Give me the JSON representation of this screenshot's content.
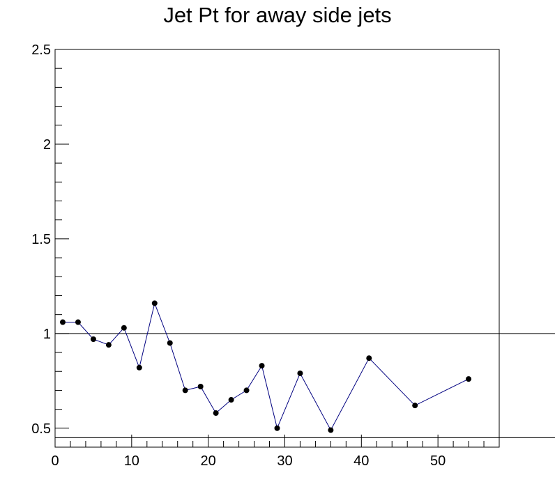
{
  "chart_data": {
    "type": "line",
    "title": "Jet Pt for away side jets",
    "xlabel": "",
    "ylabel": "",
    "xlim": [
      0,
      58
    ],
    "ylim": [
      0.4,
      2.5
    ],
    "x_ticks": [
      0,
      10,
      20,
      30,
      40,
      50
    ],
    "x_tick_labels": [
      "0",
      "10",
      "20",
      "30",
      "40",
      "50"
    ],
    "y_ticks": [
      0.5,
      1,
      1.5,
      2,
      2.5
    ],
    "y_tick_labels": [
      "0.5",
      "1",
      "1.5",
      "2",
      "2.5"
    ],
    "grid": false,
    "reference_lines": [
      1.0,
      0.45
    ],
    "series": [
      {
        "color": "#000080",
        "marker_color": "#000000",
        "x": [
          1,
          3,
          5,
          7,
          9,
          11,
          13,
          15,
          17,
          19,
          21,
          23,
          25,
          27,
          29,
          32,
          36,
          41,
          47,
          54
        ],
        "values": [
          1.06,
          1.06,
          0.97,
          0.94,
          1.03,
          0.82,
          1.16,
          0.95,
          0.7,
          0.72,
          0.58,
          0.65,
          0.7,
          0.83,
          0.5,
          0.79,
          0.49,
          0.87,
          0.62,
          0.76
        ]
      }
    ]
  }
}
